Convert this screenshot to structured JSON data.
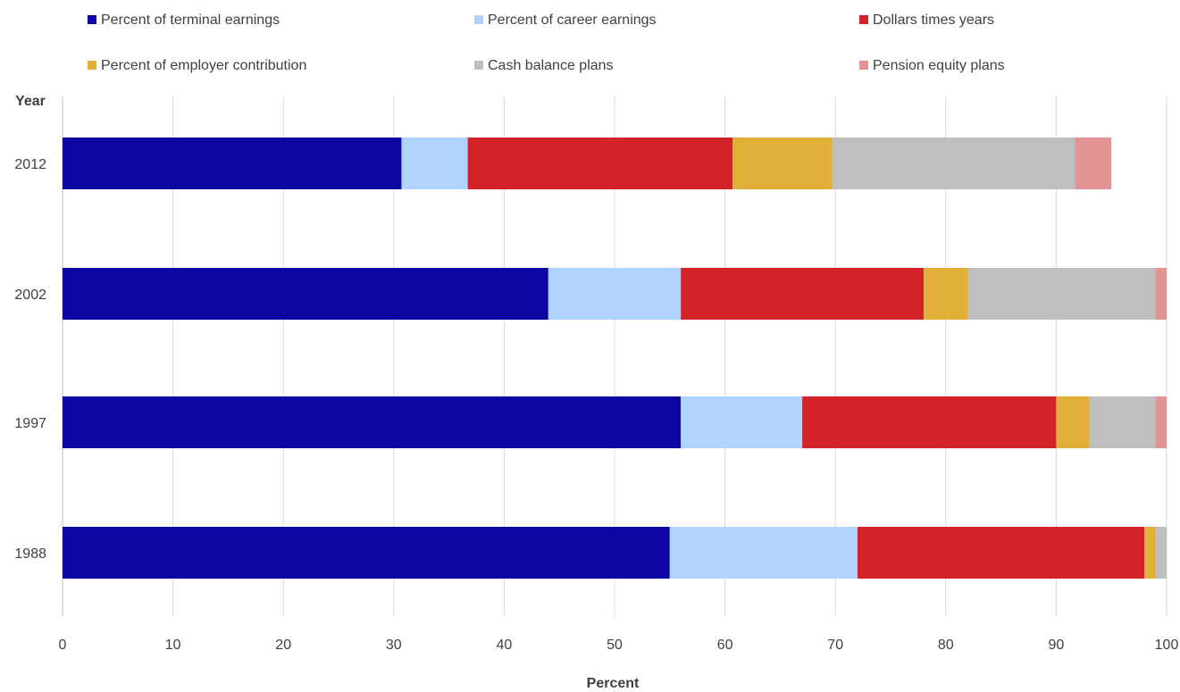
{
  "chart_data": {
    "type": "bar",
    "orientation": "horizontal",
    "stacked": true,
    "title": "",
    "xlabel": "Percent",
    "ylabel": "Year",
    "xlim": [
      0,
      100
    ],
    "x_ticks": [
      0,
      10,
      20,
      30,
      40,
      50,
      60,
      70,
      80,
      90,
      100
    ],
    "grid": "vertical",
    "legend_position": "top",
    "categories": [
      "2012",
      "2002",
      "1997",
      "1988"
    ],
    "series": [
      {
        "name": "Percent of terminal earnings",
        "color": "#0e06a3",
        "values": [
          30.7,
          44,
          56,
          55
        ]
      },
      {
        "name": "Percent of career earnings",
        "color": "#b0d3ff",
        "values": [
          6,
          12,
          11,
          17
        ]
      },
      {
        "name": "Dollars times years",
        "color": "#d3232a",
        "values": [
          24,
          22,
          23,
          26
        ]
      },
      {
        "name": "Percent of employer contribution",
        "color": "#e0b038",
        "values": [
          9,
          4,
          3,
          1
        ]
      },
      {
        "name": "Cash balance plans",
        "color": "#bfbfbf",
        "values": [
          22,
          17,
          6,
          1
        ]
      },
      {
        "name": "Pension equity plans",
        "color": "#e39393",
        "values": [
          3.3,
          1,
          1,
          0
        ]
      }
    ]
  }
}
